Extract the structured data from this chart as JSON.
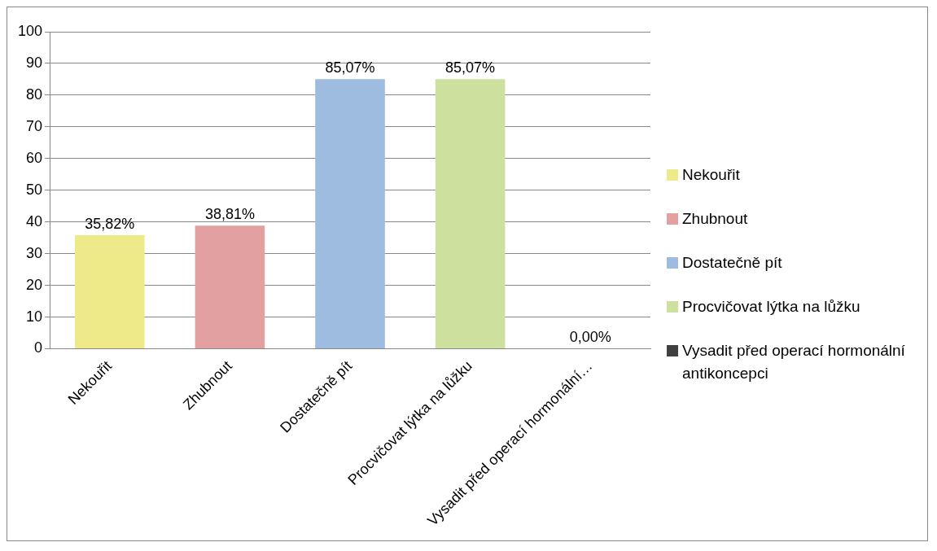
{
  "chart_data": {
    "type": "bar",
    "categories": [
      "Nekouřit",
      "Zhubnout",
      "Dostatečně pít",
      "Procvičovat lýtka na lůžku",
      "Vysadit před operací hormonální…"
    ],
    "series": [
      {
        "name": "Nekouřit",
        "color": "#eeea8a",
        "values": [
          35.82,
          null,
          null,
          null,
          null
        ],
        "value_labels": [
          "35,82%",
          null,
          null,
          null,
          null
        ]
      },
      {
        "name": "Zhubnout",
        "color": "#e3a0a0",
        "values": [
          null,
          38.81,
          null,
          null,
          null
        ],
        "value_labels": [
          null,
          "38,81%",
          null,
          null,
          null
        ]
      },
      {
        "name": "Dostatečně pít",
        "color": "#9ebbe0",
        "values": [
          null,
          null,
          85.07,
          null,
          null
        ],
        "value_labels": [
          null,
          null,
          "85,07%",
          null,
          null
        ]
      },
      {
        "name": "Procvičovat lýtka na lůžku",
        "color": "#cde09e",
        "values": [
          null,
          null,
          null,
          85.07,
          null
        ],
        "value_labels": [
          null,
          null,
          null,
          "85,07%",
          null
        ]
      },
      {
        "name": "Vysadit před operací hormonální antikoncepci",
        "color": "#404040",
        "values": [
          null,
          null,
          null,
          null,
          0
        ],
        "value_labels": [
          null,
          null,
          null,
          null,
          "0,00%"
        ]
      }
    ],
    "ylim": [
      0,
      100
    ],
    "yticks": [
      0,
      10,
      20,
      30,
      40,
      50,
      60,
      70,
      80,
      90,
      100
    ],
    "grid": "y",
    "legend": "right"
  }
}
